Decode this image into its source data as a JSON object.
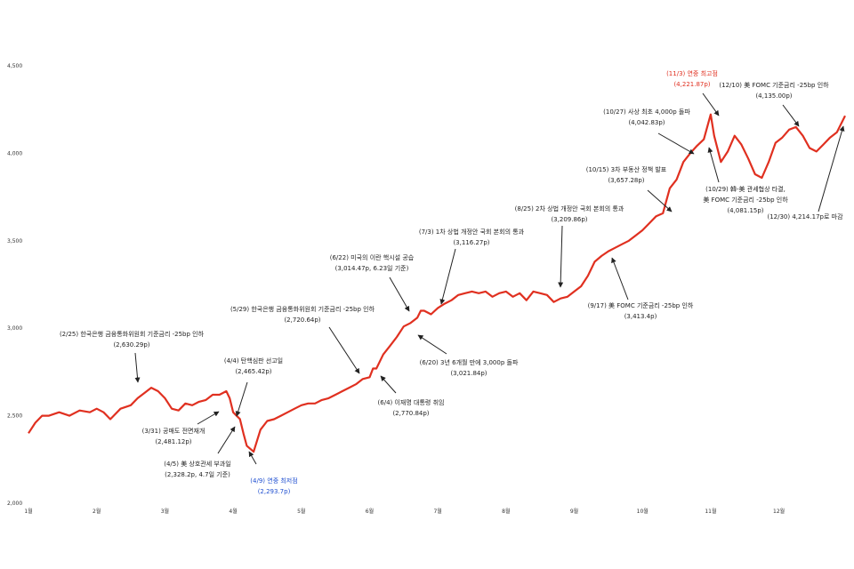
{
  "chart_data": {
    "type": "line",
    "title": "",
    "xlabel": "",
    "ylabel": "",
    "ylim": [
      2000,
      4500
    ],
    "y_ticks": [
      "2,000",
      "2,500",
      "3,000",
      "3,500",
      "4,000",
      "4,500"
    ],
    "y_tick_values": [
      2000,
      2500,
      3000,
      3500,
      4000,
      4500
    ],
    "x_tick_labels": [
      "1월",
      "2월",
      "3월",
      "4월",
      "5월",
      "6월",
      "7월",
      "8월",
      "9월",
      "10월",
      "11월",
      "12월"
    ],
    "line_color": "#e03020",
    "grid": false,
    "legend": "none",
    "series": [
      {
        "x": [
          1.0,
          1.1,
          1.2,
          1.3,
          1.45,
          1.6,
          1.75,
          1.9,
          2.0,
          2.1,
          2.2,
          2.35,
          2.5,
          2.6,
          2.7,
          2.8,
          2.9,
          3.0,
          3.1,
          3.2,
          3.3,
          3.4,
          3.5,
          3.6,
          3.7,
          3.8,
          3.9,
          3.95,
          4.0,
          4.05,
          4.1,
          4.15,
          4.2,
          4.3,
          4.4,
          4.5,
          4.6,
          4.7,
          4.8,
          4.9,
          5.0,
          5.1,
          5.2,
          5.3,
          5.4,
          5.5,
          5.6,
          5.7,
          5.8,
          5.9,
          6.0,
          6.05,
          6.1,
          6.2,
          6.3,
          6.4,
          6.5,
          6.6,
          6.7,
          6.75,
          6.8,
          6.9,
          7.0,
          7.1,
          7.2,
          7.3,
          7.4,
          7.5,
          7.6,
          7.7,
          7.8,
          7.9,
          8.0,
          8.1,
          8.2,
          8.3,
          8.4,
          8.5,
          8.6,
          8.7,
          8.8,
          8.9,
          9.0,
          9.1,
          9.2,
          9.3,
          9.4,
          9.5,
          9.6,
          9.7,
          9.8,
          9.9,
          10.0,
          10.1,
          10.2,
          10.3,
          10.4,
          10.5,
          10.6,
          10.7,
          10.8,
          10.9,
          11.0,
          11.05,
          11.15,
          11.25,
          11.35,
          11.45,
          11.55,
          11.65,
          11.75,
          11.85,
          11.95,
          12.05,
          12.15,
          12.25,
          12.35,
          12.45,
          12.55,
          12.65,
          12.75,
          12.85,
          12.97
        ],
        "y": [
          2400,
          2460,
          2500,
          2500,
          2520,
          2500,
          2530,
          2520,
          2540,
          2520,
          2480,
          2540,
          2560,
          2600,
          2630,
          2660,
          2640,
          2600,
          2540,
          2530,
          2570,
          2560,
          2580,
          2590,
          2620,
          2620,
          2640,
          2600,
          2520,
          2500,
          2481,
          2400,
          2328,
          2294,
          2420,
          2470,
          2480,
          2500,
          2520,
          2540,
          2560,
          2570,
          2570,
          2590,
          2600,
          2620,
          2640,
          2660,
          2680,
          2710,
          2720,
          2770,
          2770,
          2850,
          2900,
          2950,
          3010,
          3030,
          3060,
          3100,
          3100,
          3080,
          3116,
          3140,
          3160,
          3190,
          3200,
          3210,
          3200,
          3210,
          3180,
          3200,
          3210,
          3180,
          3200,
          3160,
          3210,
          3200,
          3190,
          3150,
          3170,
          3180,
          3210,
          3240,
          3300,
          3380,
          3413,
          3440,
          3460,
          3480,
          3500,
          3530,
          3560,
          3600,
          3640,
          3657,
          3800,
          3850,
          3950,
          4000,
          4043,
          4080,
          4222,
          4100,
          3950,
          4010,
          4100,
          4050,
          3970,
          3880,
          3860,
          3950,
          4060,
          4090,
          4135,
          4150,
          4100,
          4030,
          4010,
          4050,
          4090,
          4120,
          4214
        ]
      }
    ],
    "annotations": [
      {
        "text": "(2/25) 한국은행 금융통화위원회 기준금리 -25bp 인하",
        "sub": "(2,630.29p)",
        "color": "#222222"
      },
      {
        "text": "(3/31) 공매도 전면재개",
        "sub": "(2,481.12p)",
        "color": "#222222"
      },
      {
        "text": "(4/4) 탄핵심판 선고일",
        "sub": "(2,465.42p)",
        "color": "#222222"
      },
      {
        "text": "(4/5) 美 상호관세 부과일",
        "sub": "(2,328.2p, 4.7일 기준)",
        "color": "#222222"
      },
      {
        "text": "(4/9) 연중 최저점",
        "sub": "(2,293.7p)",
        "color": "#1f4fd0"
      },
      {
        "text": "(5/29) 한국은행 금융통화위원회 기준금리 -25bp 인하",
        "sub": "(2,720.64p)",
        "color": "#222222"
      },
      {
        "text": "(6/4) 이재명 대통령 취임",
        "sub": "(2,770.84p)",
        "color": "#222222"
      },
      {
        "text": "(6/20) 3년 6개월 만에 3,000p 돌파",
        "sub": "(3,021.84p)",
        "color": "#222222"
      },
      {
        "text": "(6/22) 미국의 이란 핵시설 공습",
        "sub": "(3,014.47p, 6.23일 기준)",
        "color": "#222222"
      },
      {
        "text": "(7/3) 1차 상법 개정안 국회 본회의 통과",
        "sub": "(3,116.27p)",
        "color": "#222222"
      },
      {
        "text": "(8/25) 2차 상법 개정안 국회 본회의 통과",
        "sub": "(3,209.86p)",
        "color": "#222222"
      },
      {
        "text": "(9/17) 美 FOMC 기준금리 -25bp 인하",
        "sub": "(3,413.4p)",
        "color": "#222222"
      },
      {
        "text": "(10/15) 3차 부동산 정책 발표",
        "sub": "(3,657.28p)",
        "color": "#222222"
      },
      {
        "text": "(10/27) 사상 최초 4,000p 돌파",
        "sub": "(4,042.83p)",
        "color": "#222222"
      },
      {
        "text": "(10/29) 韓-美 관세협상 타결,",
        "sub": "美 FOMC 기준금리 -25bp 인하",
        "sub2": "(4,081.15p)",
        "color": "#222222"
      },
      {
        "text": "(11/3) 연중 최고점",
        "sub": "(4,221.87p)",
        "color": "#e03020"
      },
      {
        "text": "(12/10) 美 FOMC 기준금리 -25bp 인하",
        "sub": "(4,135.00p)",
        "color": "#222222"
      },
      {
        "text": "(12/30) 4,214.17p로 마감",
        "sub": "",
        "color": "#222222"
      }
    ]
  }
}
